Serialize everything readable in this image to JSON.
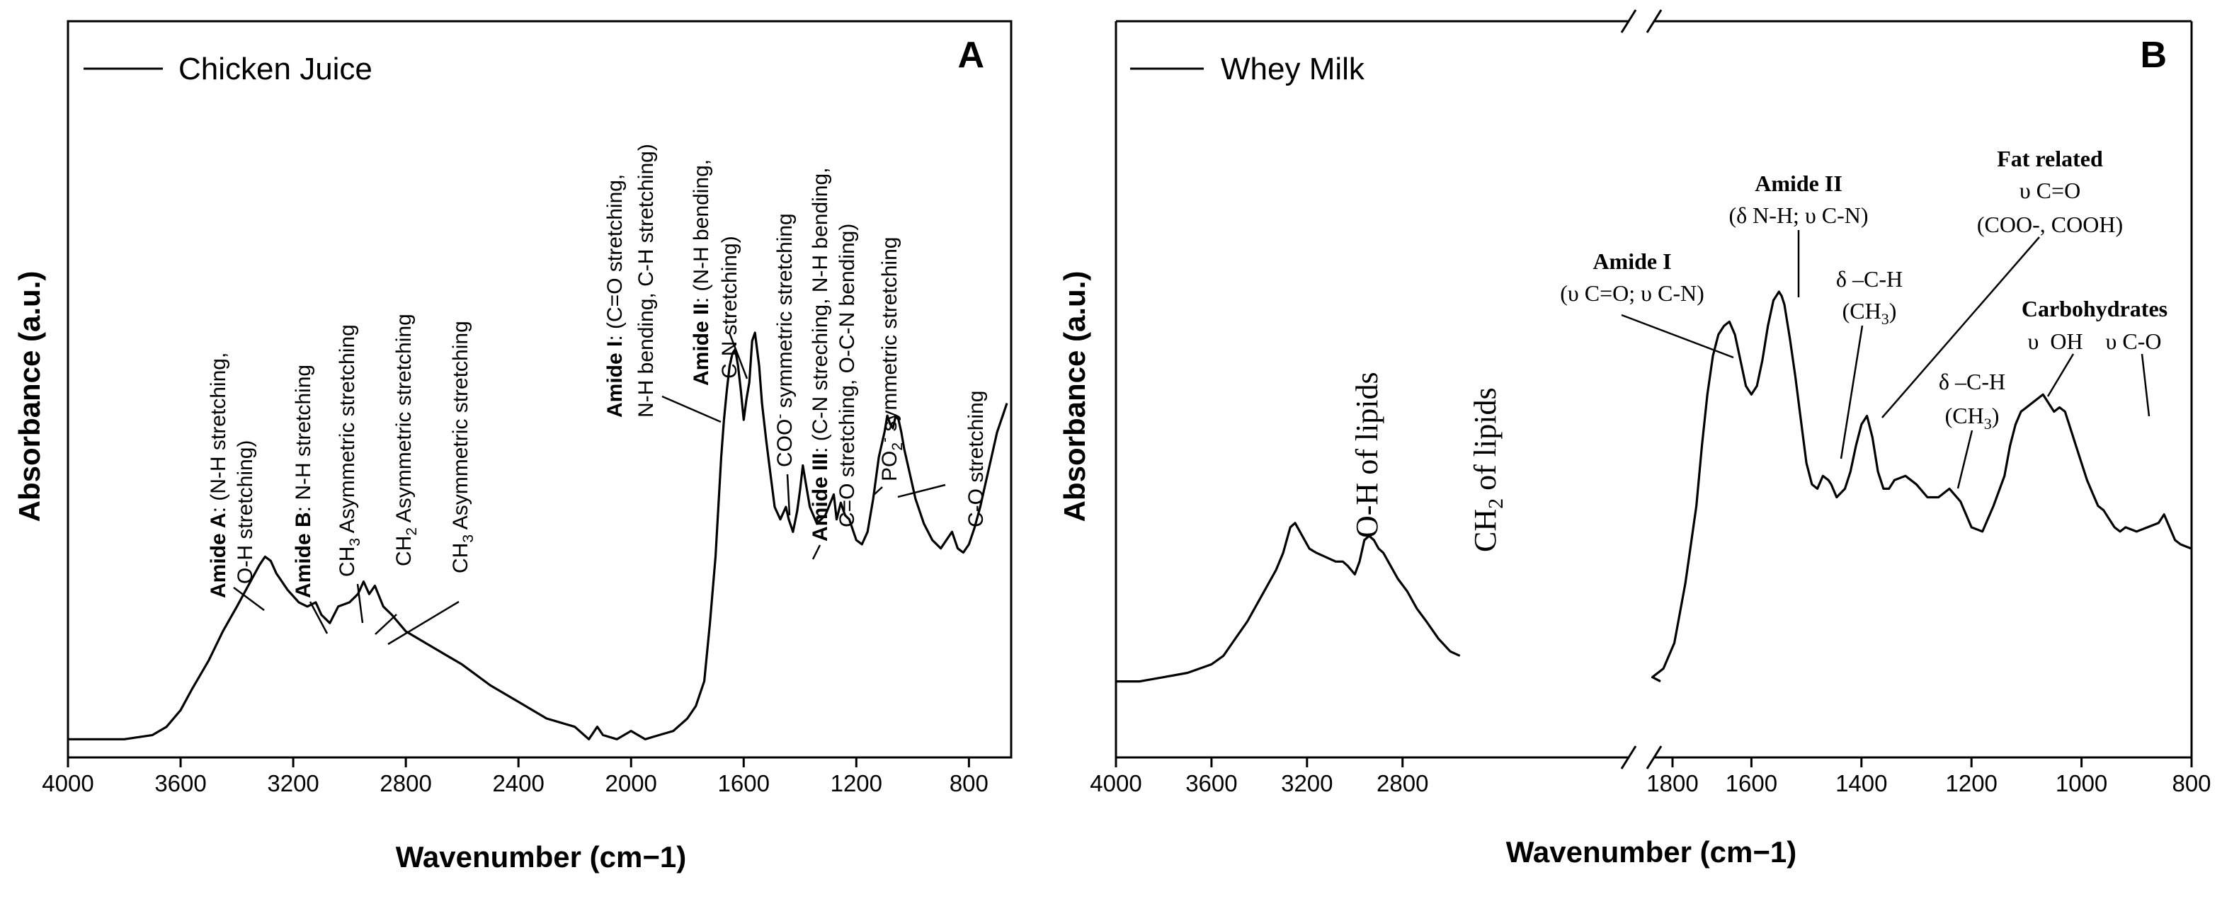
{
  "figure": {
    "panels": [
      {
        "letter": "A",
        "legend": "Chicken Juice",
        "xlabel": "Wavenumber (cm−1)",
        "ylabel": "Absorbance (a.u.)",
        "xticks": [
          "4000",
          "3600",
          "3200",
          "2800",
          "2400",
          "2000",
          "1600",
          "1200",
          "800"
        ]
      },
      {
        "letter": "B",
        "legend": "Whey Milk",
        "xlabel": "Wavenumber (cm−1)",
        "ylabel": "Absorbance (a.u.)",
        "xticks_left": [
          "4000",
          "3600",
          "3200",
          "2800"
        ],
        "xticks_right": [
          "1800",
          "1600",
          "1400",
          "1200",
          "1000",
          "800"
        ]
      }
    ]
  },
  "annotations_a": {
    "amideA_b": "Amide A",
    "amideA_rest": ": (N-H stretching,",
    "amideA_2": "O-H stretching)",
    "amideB_b": "Amide B",
    "amideB_rest": ": N-H stretching",
    "ch3_a": "CH",
    "ch3_sub": "3",
    "ch3_rest": " Asymmetric stretching",
    "ch2_a": "CH",
    "ch2_sub": "2",
    "ch2_rest": " Asymmetric stretching",
    "ch3b_a": "CH",
    "ch3b_sub": "3",
    "ch3b_rest": " Asymmetric stretching",
    "amideI_b": "Amide I",
    "amideI_rest": ": (C=O stretching,",
    "amideI_2": "N-H bending, C-H stretching)",
    "amideII_b": "Amide II",
    "amideII_rest": ": (N-H bending,",
    "amideII_2": "C-N stretching)",
    "coo_a": "COO",
    "coo_sup": "-",
    "coo_rest": " symmetric stretching",
    "amideIII_b": "Amide III",
    "amideIII_rest": ": (C-N streching, N-H bending,",
    "amideIII_2": "C=O stretching, O-C-N bending)",
    "po2_a": "PO",
    "po2_sub": "2",
    "po2_sup": "-",
    "po2_rest": " symmetric stretching",
    "co": "C-O stretching"
  },
  "annotations_b": {
    "oh_lipids": "O-H of lipids",
    "ch2_a": "CH",
    "ch2_sub": "2",
    "ch2_rest": " of lipids",
    "amideI_t": "Amide I",
    "amideI_d": "(υ C=O; υ C-N)",
    "amideII_t": "Amide II",
    "amideII_d": "(δ  N-H; υ C-N)",
    "dch1": "δ –C-H",
    "dch1_p": "(CH",
    "dch1_sub": "3",
    "dch1_e": ")",
    "fat_t": "Fat related",
    "fat_1": "υ C=O",
    "fat_2": "(COO-, COOH)",
    "dch2": "δ –C-H",
    "dch2_p": "(CH",
    "dch2_sub": "3",
    "dch2_e": ")",
    "carb_t": "Carbohydrates",
    "carb_1": "υ  OH    υ C-O"
  },
  "chart_data": [
    {
      "type": "line",
      "title": "",
      "panel": "A",
      "xlabel": "Wavenumber (cm−1)",
      "ylabel": "Absorbance (a.u.)",
      "xlim": [
        4000,
        650
      ],
      "ylim": [
        0,
        1
      ],
      "series": [
        {
          "name": "Chicken Juice",
          "x": [
            4000,
            3800,
            3700,
            3650,
            3600,
            3560,
            3500,
            3450,
            3400,
            3360,
            3320,
            3300,
            3280,
            3260,
            3220,
            3180,
            3150,
            3120,
            3100,
            3070,
            3040,
            3000,
            2970,
            2950,
            2930,
            2910,
            2880,
            2850,
            2800,
            2700,
            2600,
            2500,
            2400,
            2300,
            2200,
            2150,
            2120,
            2100,
            2050,
            2000,
            1950,
            1900,
            1850,
            1800,
            1770,
            1740,
            1720,
            1700,
            1690,
            1680,
            1670,
            1660,
            1650,
            1640,
            1630,
            1620,
            1610,
            1600,
            1590,
            1580,
            1570,
            1560,
            1545,
            1535,
            1520,
            1505,
            1490,
            1470,
            1450,
            1440,
            1425,
            1410,
            1400,
            1390,
            1380,
            1365,
            1340,
            1310,
            1280,
            1270,
            1255,
            1240,
            1225,
            1200,
            1180,
            1160,
            1140,
            1120,
            1100,
            1090,
            1080,
            1070,
            1060,
            1050,
            1040,
            1030,
            1010,
            990,
            960,
            930,
            900,
            880,
            860,
            840,
            820,
            800,
            780,
            760,
            740,
            720,
            700,
            680,
            665
          ],
          "y": [
            0.02,
            0.02,
            0.03,
            0.05,
            0.09,
            0.14,
            0.21,
            0.28,
            0.34,
            0.39,
            0.44,
            0.46,
            0.45,
            0.42,
            0.38,
            0.35,
            0.34,
            0.35,
            0.32,
            0.3,
            0.34,
            0.35,
            0.37,
            0.4,
            0.37,
            0.39,
            0.34,
            0.32,
            0.28,
            0.24,
            0.2,
            0.15,
            0.11,
            0.07,
            0.05,
            0.02,
            0.05,
            0.03,
            0.02,
            0.04,
            0.02,
            0.03,
            0.04,
            0.07,
            0.1,
            0.16,
            0.3,
            0.46,
            0.58,
            0.7,
            0.79,
            0.86,
            0.92,
            0.95,
            0.96,
            0.92,
            0.86,
            0.79,
            0.84,
            0.88,
            0.98,
            1.0,
            0.92,
            0.83,
            0.74,
            0.66,
            0.58,
            0.55,
            0.58,
            0.55,
            0.52,
            0.57,
            0.62,
            0.68,
            0.64,
            0.58,
            0.54,
            0.56,
            0.61,
            0.55,
            0.59,
            0.56,
            0.55,
            0.5,
            0.49,
            0.52,
            0.6,
            0.7,
            0.76,
            0.8,
            0.78,
            0.77,
            0.8,
            0.79,
            0.76,
            0.72,
            0.66,
            0.6,
            0.54,
            0.5,
            0.48,
            0.5,
            0.52,
            0.48,
            0.47,
            0.49,
            0.53,
            0.58,
            0.64,
            0.7,
            0.76,
            0.8,
            0.83
          ]
        }
      ]
    },
    {
      "type": "line",
      "title": "",
      "panel": "B",
      "xlabel": "Wavenumber (cm−1)",
      "ylabel": "Absorbance (a.u.)",
      "xaxis_break": true,
      "xlim_segments": [
        [
          4000,
          1800
        ],
        [
          1800,
          800
        ]
      ],
      "ylim": [
        0,
        1
      ],
      "series": [
        {
          "name": "Whey Milk",
          "segment": 1,
          "x": [
            4000,
            3900,
            3800,
            3700,
            3600,
            3550,
            3500,
            3450,
            3400,
            3360,
            3330,
            3300,
            3280,
            3270,
            3250,
            3220,
            3190,
            3160,
            3120,
            3080,
            3050,
            3030,
            3000,
            2980,
            2960,
            2940,
            2920,
            2900,
            2880,
            2860,
            2820,
            2780,
            2740,
            2700,
            2650,
            2600,
            2560
          ],
          "y": [
            0.07,
            0.07,
            0.08,
            0.09,
            0.11,
            0.13,
            0.17,
            0.21,
            0.26,
            0.3,
            0.33,
            0.37,
            0.41,
            0.43,
            0.44,
            0.41,
            0.38,
            0.37,
            0.36,
            0.35,
            0.35,
            0.34,
            0.32,
            0.35,
            0.4,
            0.41,
            0.4,
            0.38,
            0.37,
            0.35,
            0.31,
            0.28,
            0.24,
            0.21,
            0.17,
            0.14,
            0.13
          ]
        },
        {
          "name": "Whey Milk",
          "segment": 2,
          "x": [
            1800,
            1780,
            1760,
            1740,
            1720,
            1700,
            1690,
            1680,
            1670,
            1660,
            1650,
            1640,
            1630,
            1620,
            1610,
            1600,
            1590,
            1580,
            1570,
            1560,
            1550,
            1545,
            1540,
            1530,
            1520,
            1510,
            1500,
            1490,
            1480,
            1470,
            1460,
            1455,
            1445,
            1430,
            1420,
            1410,
            1400,
            1390,
            1380,
            1370,
            1360,
            1350,
            1340,
            1320,
            1300,
            1280,
            1260,
            1240,
            1220,
            1200,
            1180,
            1160,
            1140,
            1130,
            1120,
            1110,
            1100,
            1090,
            1080,
            1070,
            1060,
            1050,
            1040,
            1030,
            1020,
            1010,
            1000,
            990,
            980,
            970,
            960,
            950,
            940,
            930,
            920,
            900,
            880,
            860,
            850,
            840,
            830,
            820,
            800
          ],
          "y": [
            0.07,
            0.08,
            0.1,
            0.16,
            0.3,
            0.48,
            0.62,
            0.74,
            0.83,
            0.88,
            0.9,
            0.91,
            0.88,
            0.82,
            0.76,
            0.74,
            0.76,
            0.82,
            0.9,
            0.96,
            0.98,
            0.97,
            0.95,
            0.87,
            0.78,
            0.68,
            0.58,
            0.53,
            0.52,
            0.55,
            0.54,
            0.53,
            0.5,
            0.52,
            0.56,
            0.62,
            0.67,
            0.69,
            0.64,
            0.56,
            0.52,
            0.52,
            0.54,
            0.55,
            0.53,
            0.5,
            0.5,
            0.52,
            0.49,
            0.43,
            0.42,
            0.48,
            0.55,
            0.62,
            0.67,
            0.7,
            0.71,
            0.72,
            0.73,
            0.74,
            0.72,
            0.7,
            0.71,
            0.7,
            0.66,
            0.62,
            0.58,
            0.54,
            0.51,
            0.48,
            0.47,
            0.45,
            0.43,
            0.42,
            0.43,
            0.42,
            0.43,
            0.44,
            0.46,
            0.43,
            0.4,
            0.39,
            0.38
          ]
        }
      ]
    }
  ]
}
